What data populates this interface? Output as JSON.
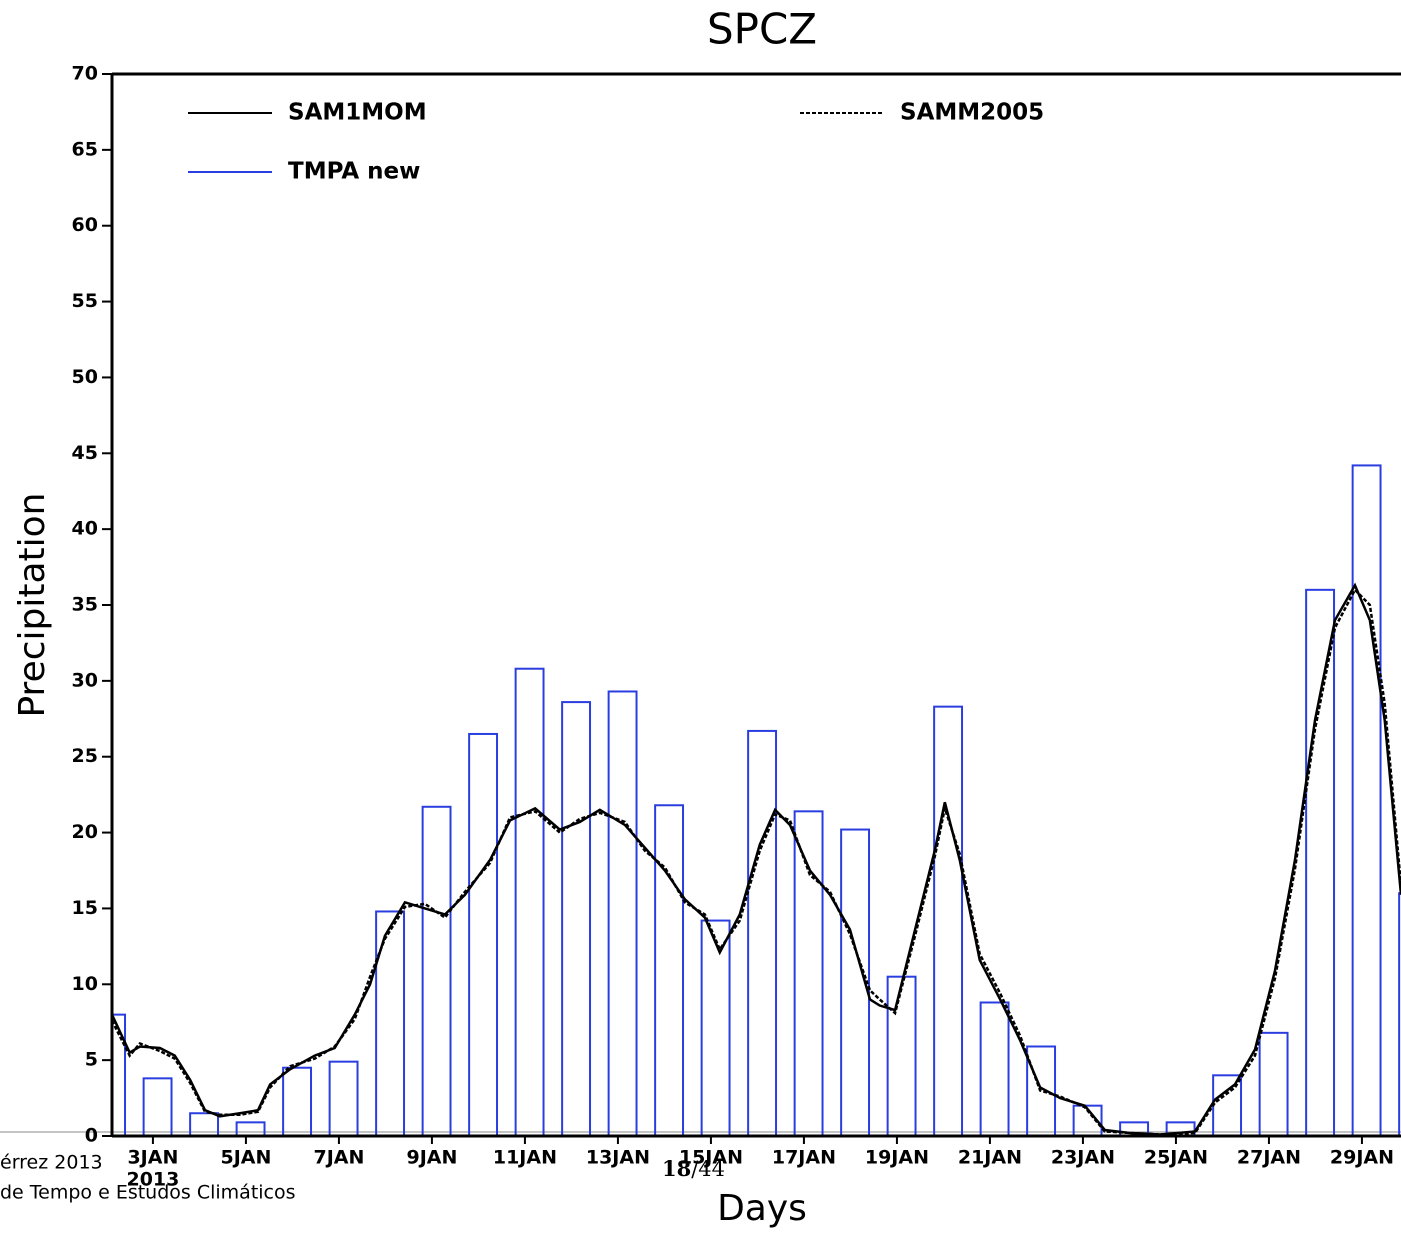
{
  "chart_data": {
    "type": "bar_line",
    "title": "SPCZ",
    "xlabel": "Days",
    "ylabel": "Precipitation",
    "xlim": [
      2.12,
      29.84
    ],
    "ylim": [
      0,
      70
    ],
    "yticks": [
      0,
      5,
      10,
      15,
      20,
      25,
      30,
      35,
      40,
      45,
      50,
      55,
      60,
      65,
      70
    ],
    "xticks": [
      {
        "value": 3,
        "label": "3JAN"
      },
      {
        "value": 5,
        "label": "5JAN"
      },
      {
        "value": 7,
        "label": "7JAN"
      },
      {
        "value": 9,
        "label": "9JAN"
      },
      {
        "value": 11,
        "label": "11JAN"
      },
      {
        "value": 13,
        "label": "13JAN"
      },
      {
        "value": 15,
        "label": "15JAN"
      },
      {
        "value": 17,
        "label": "17JAN"
      },
      {
        "value": 19,
        "label": "19JAN"
      },
      {
        "value": 21,
        "label": "21JAN"
      },
      {
        "value": 23,
        "label": "23JAN"
      },
      {
        "value": 25,
        "label": "25JAN"
      },
      {
        "value": 27,
        "label": "27JAN"
      },
      {
        "value": 29,
        "label": "29JAN"
      }
    ],
    "xtick_year": "2013",
    "bars": {
      "name": "TMPA new",
      "color": "#2a3ee0",
      "x": [
        2.1,
        3.1,
        4.1,
        5.1,
        6.1,
        7.1,
        8.1,
        9.1,
        10.1,
        11.1,
        12.1,
        13.1,
        14.1,
        15.1,
        16.1,
        17.1,
        18.1,
        19.1,
        20.1,
        21.1,
        22.1,
        23.1,
        24.1,
        25.1,
        26.1,
        27.1,
        28.1,
        29.1,
        30.1
      ],
      "values": [
        8.0,
        3.8,
        1.5,
        0.9,
        4.5,
        4.9,
        14.8,
        21.7,
        26.5,
        30.8,
        28.6,
        29.3,
        21.8,
        14.2,
        26.7,
        21.4,
        20.2,
        10.5,
        28.3,
        8.8,
        5.9,
        2.0,
        0.9,
        0.9,
        4.0,
        6.8,
        36.0,
        44.2,
        16.0
      ]
    },
    "x": [
      2.12,
      2.5,
      2.72,
      3.15,
      3.47,
      3.8,
      4.12,
      4.44,
      4.87,
      5.26,
      5.52,
      5.95,
      6.48,
      6.91,
      7.34,
      7.67,
      7.99,
      8.42,
      8.85,
      9.28,
      9.71,
      10.25,
      10.68,
      11.22,
      11.75,
      12.18,
      12.61,
      13.15,
      13.58,
      14.01,
      14.44,
      14.87,
      15.19,
      15.62,
      16.05,
      16.38,
      16.7,
      17.13,
      17.56,
      17.99,
      18.42,
      18.63,
      18.96,
      19.39,
      19.82,
      20.03,
      20.35,
      20.78,
      21.22,
      21.65,
      22.08,
      22.51,
      23.04,
      23.47,
      24.01,
      24.66,
      25.41,
      25.84,
      26.27,
      26.7,
      27.13,
      27.56,
      27.99,
      28.42,
      28.85,
      29.17,
      29.49,
      29.84
    ],
    "series": [
      {
        "name": "SAM1MOM",
        "color": "#000000",
        "dashed": false,
        "values": [
          8.0,
          5.5,
          5.9,
          5.8,
          5.3,
          3.7,
          1.7,
          1.3,
          1.5,
          1.7,
          3.4,
          4.4,
          5.3,
          5.8,
          8.0,
          10.0,
          13.2,
          15.4,
          15.0,
          14.6,
          15.9,
          18.2,
          20.8,
          21.6,
          20.2,
          20.7,
          21.5,
          20.5,
          19.0,
          17.5,
          15.6,
          14.4,
          12.1,
          14.6,
          19.2,
          21.5,
          20.5,
          17.5,
          15.9,
          13.6,
          9.0,
          8.6,
          8.3,
          13.6,
          18.9,
          22.0,
          18.2,
          11.6,
          9.0,
          6.3,
          3.2,
          2.5,
          2.0,
          0.4,
          0.2,
          0.1,
          0.3,
          2.4,
          3.4,
          5.7,
          10.9,
          18.2,
          27.4,
          34.0,
          36.3,
          34.0,
          27.4,
          15.9
        ]
      },
      {
        "name": "SAMM2005",
        "color": "#000000",
        "dashed": true,
        "values": [
          7.6,
          5.3,
          6.1,
          5.6,
          5.1,
          3.5,
          1.6,
          1.4,
          1.4,
          1.6,
          3.2,
          4.6,
          5.1,
          5.9,
          7.7,
          10.5,
          13.0,
          15.1,
          15.3,
          14.4,
          16.1,
          18.0,
          21.0,
          21.4,
          20.0,
          20.9,
          21.3,
          20.7,
          18.8,
          17.7,
          15.4,
          14.6,
          12.3,
          14.2,
          18.8,
          21.2,
          20.8,
          17.2,
          16.1,
          13.3,
          9.6,
          9.0,
          8.1,
          13.2,
          18.5,
          21.6,
          18.6,
          12.0,
          9.4,
          6.6,
          3.0,
          2.6,
          1.9,
          0.3,
          0.2,
          0.1,
          0.2,
          2.2,
          3.2,
          5.3,
          10.4,
          17.6,
          26.8,
          33.5,
          36.0,
          35.0,
          28.5,
          16.5
        ]
      }
    ]
  },
  "footer": {
    "author": "érrez 2013",
    "institution": "de Tempo e Estudos Climáticos",
    "page": "18",
    "total": "/44"
  }
}
